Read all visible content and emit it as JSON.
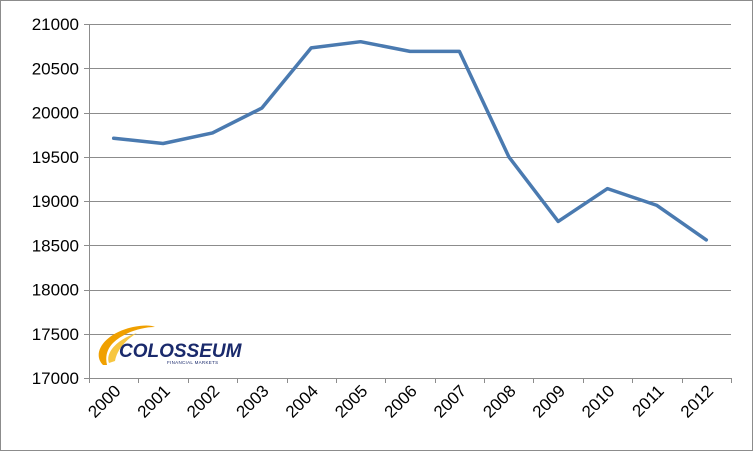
{
  "chart_data": {
    "type": "line",
    "title": "",
    "xlabel": "",
    "ylabel": "",
    "categories": [
      "2000",
      "2001",
      "2002",
      "2003",
      "2004",
      "2005",
      "2006",
      "2007",
      "2008",
      "2009",
      "2010",
      "2011",
      "2012"
    ],
    "series": [
      {
        "values": [
          19710,
          19650,
          19770,
          20050,
          20730,
          20800,
          20690,
          20690,
          19500,
          18770,
          19140,
          18950,
          18560
        ],
        "color": "#4a7ab0"
      }
    ],
    "ylim": [
      17000,
      21000
    ],
    "yticks": [
      17000,
      17500,
      18000,
      18500,
      19000,
      19500,
      20000,
      20500,
      21000
    ],
    "grid": true,
    "legend": "none"
  },
  "logo": {
    "text": "COLOSSEUM",
    "subtext": "FINANCIAL MARKETS",
    "color": "#1a2a6c",
    "swoosh_color": "#f0a000"
  }
}
